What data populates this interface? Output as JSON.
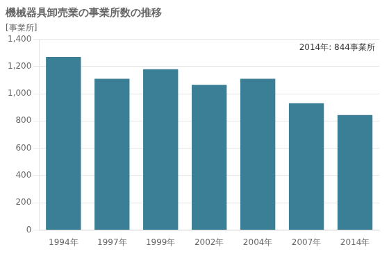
{
  "chart_data": {
    "type": "bar",
    "title": "機械器具卸売業の事業所数の推移",
    "ylabel": "[事業所]",
    "annotation": "2014年: 844事業所",
    "categories": [
      "1994年",
      "1997年",
      "1999年",
      "2002年",
      "2004年",
      "2007年",
      "2014年"
    ],
    "values": [
      1270,
      1110,
      1180,
      1065,
      1110,
      930,
      844
    ],
    "color": "#3a7f96",
    "ylim": [
      0,
      1400
    ],
    "yticks": [
      0,
      200,
      400,
      600,
      800,
      {
        "value": 1000,
        "label": "1,000"
      },
      {
        "value": 1200,
        "label": "1,200"
      },
      {
        "value": 1400,
        "label": "1,400"
      }
    ],
    "grid": true
  }
}
